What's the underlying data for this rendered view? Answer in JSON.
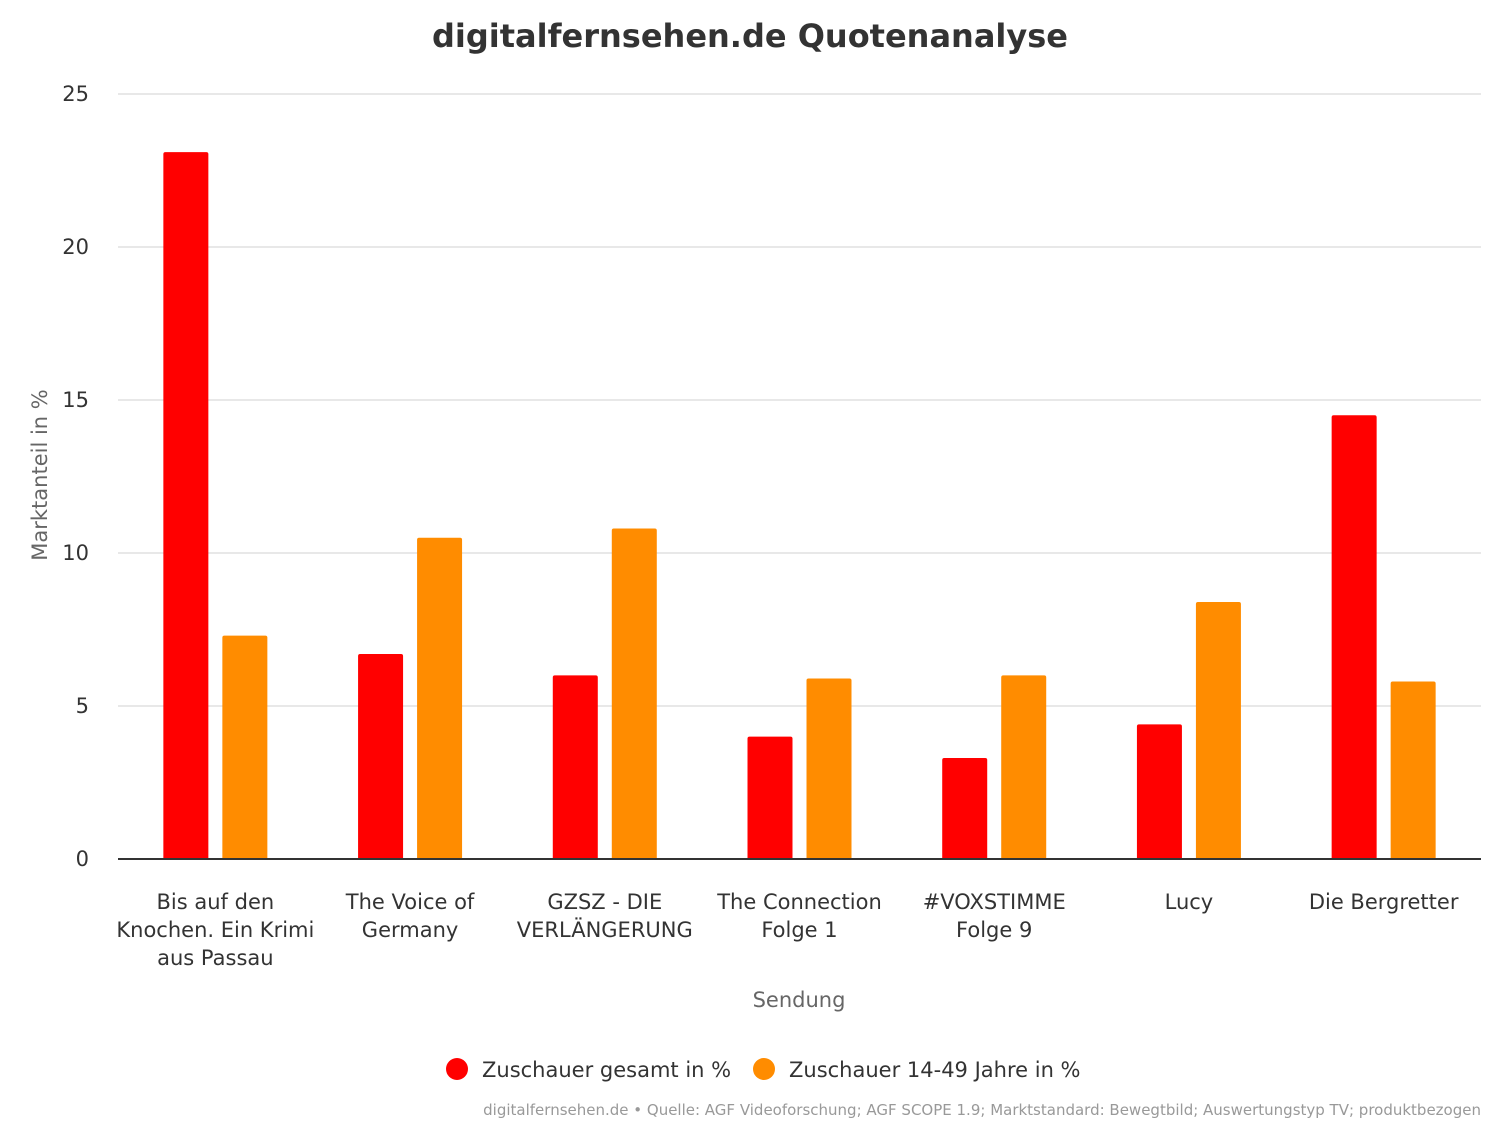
{
  "chart_data": {
    "type": "bar",
    "title": "digitalfernsehen.de Quotenanalyse",
    "xlabel": "Sendung",
    "ylabel": "Marktanteil in %",
    "ylim": [
      0,
      25
    ],
    "yticks": [
      0,
      5,
      10,
      15,
      20,
      25
    ],
    "grid": true,
    "legend_position": "bottom-center",
    "categories": [
      [
        "Bis auf den",
        "Knochen. Ein Krimi",
        "aus Passau"
      ],
      [
        "The Voice of",
        "Germany"
      ],
      [
        "GZSZ - DIE",
        "VERLÄNGERUNG"
      ],
      [
        "The Connection",
        "Folge 1"
      ],
      [
        "#VOXSTIMME",
        "Folge 9"
      ],
      [
        "Lucy"
      ],
      [
        "Die Bergretter"
      ]
    ],
    "series": [
      {
        "name": "Zuschauer gesamt in %",
        "color": "#ff0000",
        "values": [
          23.1,
          6.7,
          6.0,
          4.0,
          3.3,
          4.4,
          14.5
        ]
      },
      {
        "name": "Zuschauer 14-49 Jahre in %",
        "color": "#ff8c00",
        "values": [
          7.3,
          10.5,
          10.8,
          5.9,
          6.0,
          8.4,
          5.8
        ]
      }
    ],
    "credits": "digitalfernsehen.de • Quelle: AGF Videoforschung; AGF SCOPE 1.9; Marktstandard: Bewegtbild; Auswertungstyp TV; produktbezogen"
  }
}
